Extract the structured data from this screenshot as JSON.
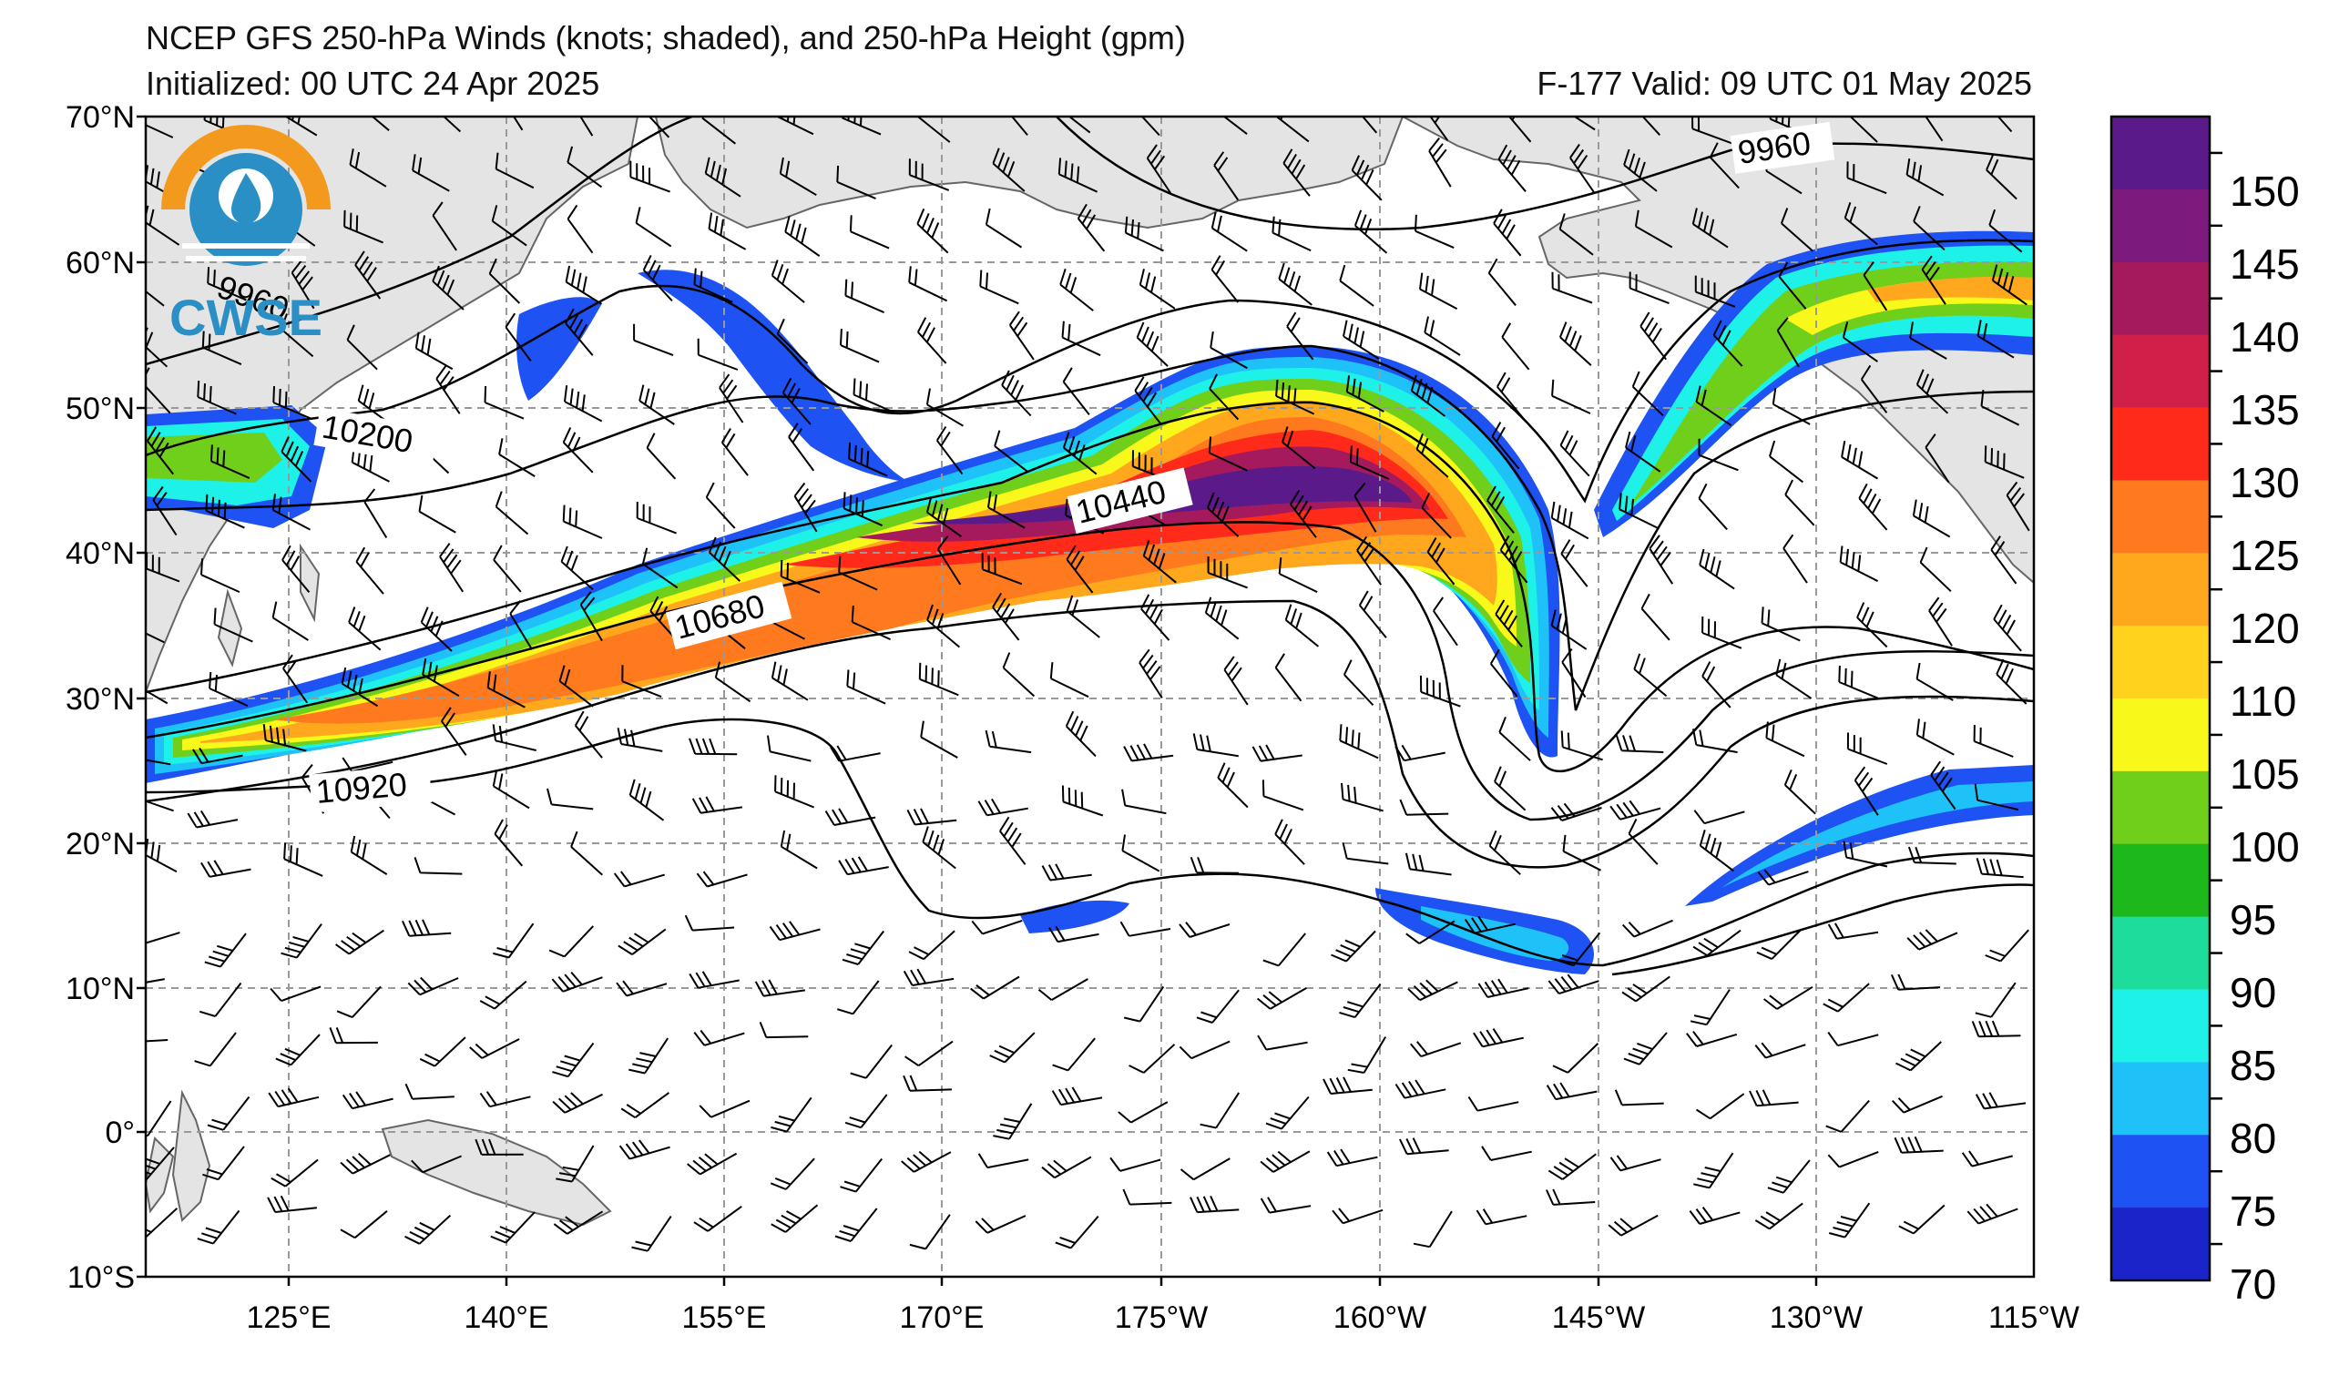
{
  "header": {
    "title": "NCEP GFS 250-hPa Winds (knots; shaded), and 250-hPa Height (gpm)",
    "initialized": "Initialized: 00 UTC 24 Apr 2025",
    "valid": "F-177  Valid: 09 UTC 01 May 2025"
  },
  "logo": {
    "text": "CWSE",
    "colors": {
      "orange": "#f39a1e",
      "blue": "#2a8fc4"
    }
  },
  "map": {
    "lat_labels": [
      "70°N",
      "60°N",
      "50°N",
      "40°N",
      "30°N",
      "20°N",
      "10°N",
      "0°",
      "10°S"
    ],
    "lon_labels": [
      "125°E",
      "140°E",
      "155°E",
      "170°E",
      "175°W",
      "160°W",
      "145°W",
      "130°W",
      "115°W"
    ],
    "height_labels": [
      "9960",
      "9960",
      "10200",
      "10440",
      "10680",
      "10920"
    ],
    "land_color": "#e4e4e4",
    "grid_style": "dashed"
  },
  "colorbar": {
    "ticks": [
      "150",
      "145",
      "140",
      "135",
      "130",
      "125",
      "120",
      "110",
      "105",
      "100",
      "95",
      "90",
      "85",
      "80",
      "75",
      "70"
    ],
    "colors": [
      "#5a1a8a",
      "#7d1a7e",
      "#a51a5c",
      "#d0204a",
      "#ff2a1a",
      "#ff7a1e",
      "#ffa81e",
      "#ffd21e",
      "#f8f81a",
      "#6fcf1a",
      "#1cb81c",
      "#1edc9c",
      "#1ef2e8",
      "#1ec2f8",
      "#1e52f2",
      "#1a24c8"
    ]
  }
}
